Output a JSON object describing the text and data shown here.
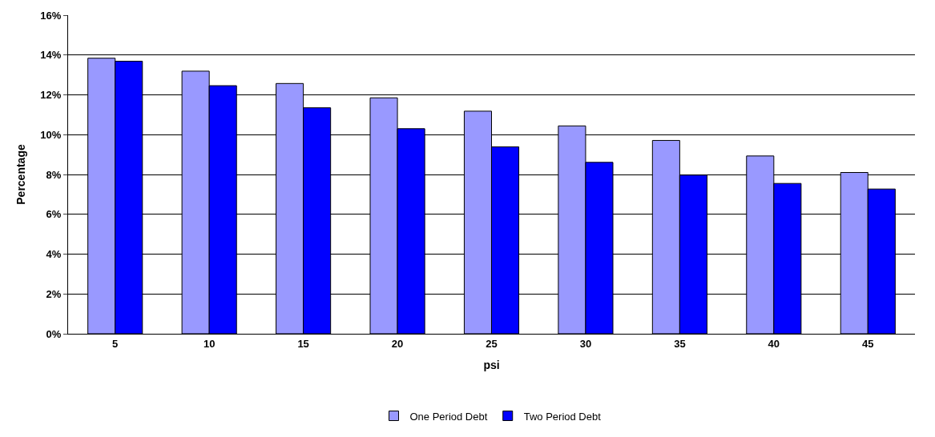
{
  "chart_data": {
    "type": "bar",
    "xlabel": "psi",
    "ylabel": "Percentage",
    "categories": [
      "5",
      "10",
      "15",
      "20",
      "25",
      "30",
      "35",
      "40",
      "45"
    ],
    "series": [
      {
        "name": "One Period Debt",
        "color": "#9999ff",
        "values": [
          13.84,
          13.19,
          12.57,
          11.85,
          11.18,
          10.44,
          9.71,
          8.93,
          8.1
        ]
      },
      {
        "name": "Two Period Debt",
        "color": "#0000ff",
        "values": [
          13.69,
          12.46,
          11.35,
          10.3,
          9.39,
          8.61,
          7.97,
          7.55,
          7.27
        ]
      }
    ],
    "ylim": [
      0,
      16
    ],
    "yticks": [
      {
        "value": 0,
        "label": "0%"
      },
      {
        "value": 2,
        "label": "2%"
      },
      {
        "value": 4,
        "label": "4%"
      },
      {
        "value": 6,
        "label": "6%"
      },
      {
        "value": 8,
        "label": "8%"
      },
      {
        "value": 10,
        "label": "10%"
      },
      {
        "value": 12,
        "label": "12%"
      },
      {
        "value": 14,
        "label": "14%"
      },
      {
        "value": 16,
        "label": "16%"
      }
    ],
    "grid": "y",
    "legend": "bottom"
  }
}
